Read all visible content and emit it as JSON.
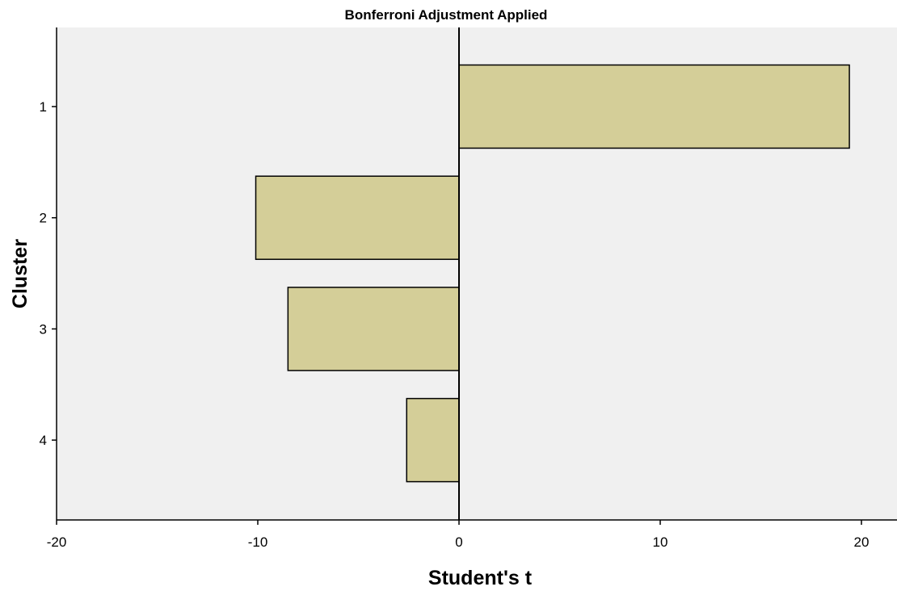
{
  "chart_data": {
    "type": "bar",
    "orientation": "horizontal",
    "title": "Bonferroni Adjustment Applied",
    "xlabel": "Student's t",
    "ylabel": "Cluster",
    "categories": [
      "1",
      "2",
      "3",
      "4"
    ],
    "values": [
      19.4,
      -10.1,
      -8.5,
      -2.6
    ],
    "xlim": [
      -20,
      22
    ],
    "xticks": [
      -20,
      -10,
      0,
      10,
      20
    ],
    "grid": false,
    "reference_line": 0,
    "colors": {
      "bar_fill": "#d4ce98",
      "bar_stroke": "#000000",
      "plot_background": "#f0f0f0",
      "page_background": "#ffffff"
    }
  }
}
